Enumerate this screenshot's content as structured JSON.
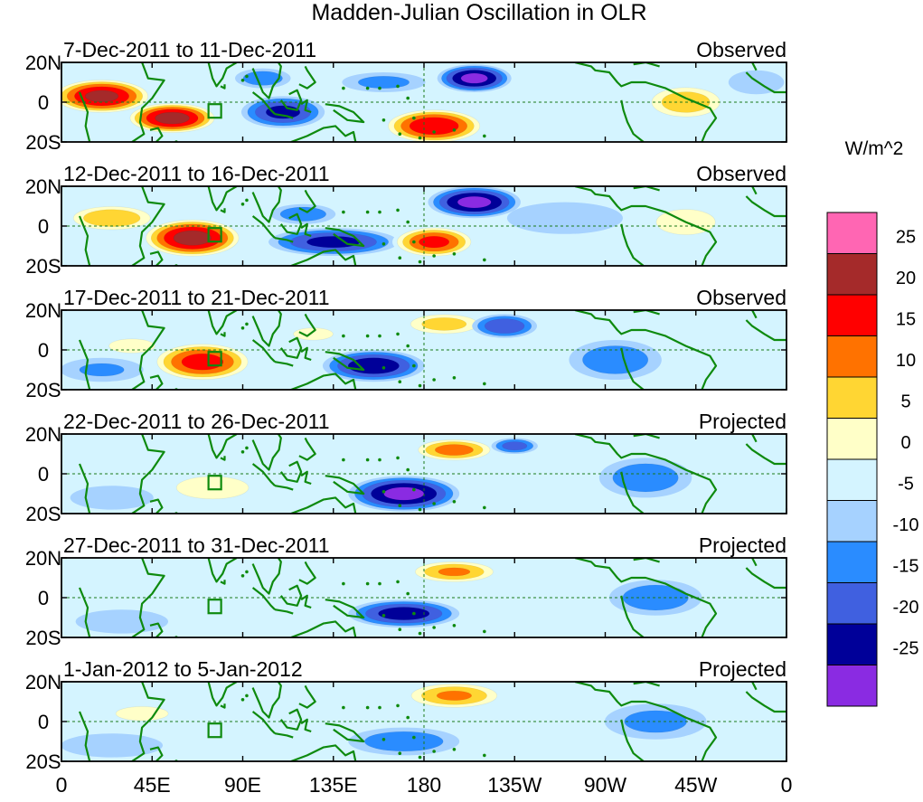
{
  "chart_data": {
    "type": "heatmap",
    "title": "Madden-Julian Oscillation in OLR",
    "colorbar": {
      "unit_label": "W/m^2",
      "tick_labels": [
        "25",
        "20",
        "15",
        "10",
        "5",
        "0",
        "-5",
        "-10",
        "-15",
        "-20",
        "-25"
      ],
      "levels": [
        {
          "lo": 30,
          "color": "#ff66b3"
        },
        {
          "lo": 25,
          "color": "#a52a2a"
        },
        {
          "lo": 20,
          "color": "#ff0000"
        },
        {
          "lo": 15,
          "color": "#ff7200"
        },
        {
          "lo": 10,
          "color": "#ffd633"
        },
        {
          "lo": 5,
          "color": "#ffffc8"
        },
        {
          "lo": 0,
          "color": "#d4f4ff"
        },
        {
          "lo": -5,
          "color": "#a6d2ff"
        },
        {
          "lo": -10,
          "color": "#2a8cff"
        },
        {
          "lo": -15,
          "color": "#4060e0"
        },
        {
          "lo": -20,
          "color": "#000099"
        },
        {
          "lo": -25,
          "color": "#8a2be2"
        }
      ]
    },
    "x_axis": {
      "lon_range": [
        0,
        360
      ],
      "ticks": [
        {
          "lon": 0,
          "label": "0"
        },
        {
          "lon": 45,
          "label": "45E"
        },
        {
          "lon": 90,
          "label": "90E"
        },
        {
          "lon": 135,
          "label": "135E"
        },
        {
          "lon": 180,
          "label": "180"
        },
        {
          "lon": 225,
          "label": "135W"
        },
        {
          "lon": 270,
          "label": "90W"
        },
        {
          "lon": 315,
          "label": "45W"
        },
        {
          "lon": 360,
          "label": "0"
        }
      ]
    },
    "y_axis": {
      "lat_range": [
        -20,
        20
      ],
      "ticks": [
        {
          "lat": 20,
          "label": "20N"
        },
        {
          "lat": 0,
          "label": "0"
        },
        {
          "lat": -20,
          "label": "20S"
        }
      ]
    },
    "panels": [
      {
        "date_range": "7-Dec-2011 to 11-Dec-2011",
        "status": "Observed",
        "anomalies": [
          {
            "lon": 20,
            "lat": 3,
            "rx": 22,
            "ry": 9,
            "value": 26
          },
          {
            "lon": 55,
            "lat": -8,
            "rx": 20,
            "ry": 8,
            "value": 27
          },
          {
            "lon": 110,
            "lat": -5,
            "rx": 18,
            "ry": 8,
            "value": -16
          },
          {
            "lon": 100,
            "lat": 12,
            "rx": 12,
            "ry": 5,
            "value": -8
          },
          {
            "lon": 185,
            "lat": -12,
            "rx": 22,
            "ry": 9,
            "value": 24
          },
          {
            "lon": 205,
            "lat": 12,
            "rx": 16,
            "ry": 7,
            "value": -21
          },
          {
            "lon": 160,
            "lat": 10,
            "rx": 18,
            "ry": 5,
            "value": -6
          },
          {
            "lon": 310,
            "lat": 0,
            "rx": 18,
            "ry": 9,
            "value": 13
          },
          {
            "lon": 250,
            "lat": 0,
            "rx": 25,
            "ry": 8,
            "value": 4
          },
          {
            "lon": 345,
            "lat": 10,
            "rx": 12,
            "ry": 6,
            "value": -4
          }
        ]
      },
      {
        "date_range": "12-Dec-2011 to 16-Dec-2011",
        "status": "Observed",
        "anomalies": [
          {
            "lon": 25,
            "lat": 4,
            "rx": 20,
            "ry": 7,
            "value": 14
          },
          {
            "lon": 65,
            "lat": -6,
            "rx": 22,
            "ry": 10,
            "value": 27
          },
          {
            "lon": 135,
            "lat": -8,
            "rx": 28,
            "ry": 7,
            "value": -16
          },
          {
            "lon": 120,
            "lat": 6,
            "rx": 14,
            "ry": 5,
            "value": -8
          },
          {
            "lon": 185,
            "lat": -8,
            "rx": 18,
            "ry": 8,
            "value": 21
          },
          {
            "lon": 205,
            "lat": 12,
            "rx": 20,
            "ry": 8,
            "value": -21
          },
          {
            "lon": 310,
            "lat": 2,
            "rx": 18,
            "ry": 9,
            "value": 8
          },
          {
            "lon": 250,
            "lat": 4,
            "rx": 25,
            "ry": 8,
            "value": -4
          }
        ]
      },
      {
        "date_range": "17-Dec-2011 to 21-Dec-2011",
        "status": "Observed",
        "anomalies": [
          {
            "lon": 70,
            "lat": -6,
            "rx": 22,
            "ry": 10,
            "value": 22
          },
          {
            "lon": 35,
            "lat": 2,
            "rx": 14,
            "ry": 5,
            "value": 8
          },
          {
            "lon": 155,
            "lat": -8,
            "rx": 22,
            "ry": 8,
            "value": -18
          },
          {
            "lon": 125,
            "lat": 8,
            "rx": 14,
            "ry": 5,
            "value": 6
          },
          {
            "lon": 190,
            "lat": 13,
            "rx": 18,
            "ry": 6,
            "value": 12
          },
          {
            "lon": 220,
            "lat": 12,
            "rx": 14,
            "ry": 6,
            "value": -14
          },
          {
            "lon": 275,
            "lat": -5,
            "rx": 20,
            "ry": 10,
            "value": -8
          },
          {
            "lon": 320,
            "lat": 2,
            "rx": 20,
            "ry": 6,
            "value": 4
          },
          {
            "lon": 20,
            "lat": -10,
            "rx": 18,
            "ry": 6,
            "value": -5
          }
        ]
      },
      {
        "date_range": "22-Dec-2011 to 26-Dec-2011",
        "status": "Projected",
        "anomalies": [
          {
            "lon": 75,
            "lat": -7,
            "rx": 22,
            "ry": 8,
            "value": 8
          },
          {
            "lon": 170,
            "lat": -10,
            "rx": 24,
            "ry": 9,
            "value": -21
          },
          {
            "lon": 195,
            "lat": 12,
            "rx": 18,
            "ry": 6,
            "value": 17
          },
          {
            "lon": 225,
            "lat": 14,
            "rx": 10,
            "ry": 4,
            "value": -12
          },
          {
            "lon": 290,
            "lat": -2,
            "rx": 20,
            "ry": 10,
            "value": -8
          },
          {
            "lon": 40,
            "lat": 3,
            "rx": 18,
            "ry": 6,
            "value": 4
          },
          {
            "lon": 25,
            "lat": -12,
            "rx": 18,
            "ry": 6,
            "value": -4
          }
        ]
      },
      {
        "date_range": "27-Dec-2011 to 31-Dec-2011",
        "status": "Projected",
        "anomalies": [
          {
            "lon": 195,
            "lat": 13,
            "rx": 20,
            "ry": 6,
            "value": 15
          },
          {
            "lon": 170,
            "lat": -8,
            "rx": 24,
            "ry": 7,
            "value": -17
          },
          {
            "lon": 75,
            "lat": -5,
            "rx": 22,
            "ry": 7,
            "value": 4
          },
          {
            "lon": 295,
            "lat": 0,
            "rx": 20,
            "ry": 9,
            "value": -8
          },
          {
            "lon": 40,
            "lat": 3,
            "rx": 18,
            "ry": 6,
            "value": 4
          },
          {
            "lon": 30,
            "lat": -12,
            "rx": 20,
            "ry": 6,
            "value": -4
          }
        ]
      },
      {
        "date_range": "1-Jan-2012 to 5-Jan-2012",
        "status": "Projected",
        "anomalies": [
          {
            "lon": 195,
            "lat": 13,
            "rx": 22,
            "ry": 7,
            "value": 15
          },
          {
            "lon": 170,
            "lat": -10,
            "rx": 24,
            "ry": 7,
            "value": -8
          },
          {
            "lon": 40,
            "lat": 4,
            "rx": 16,
            "ry": 5,
            "value": 8
          },
          {
            "lon": 90,
            "lat": -5,
            "rx": 24,
            "ry": 8,
            "value": 4
          },
          {
            "lon": 295,
            "lat": 0,
            "rx": 22,
            "ry": 9,
            "value": -6
          },
          {
            "lon": 25,
            "lat": -12,
            "rx": 22,
            "ry": 6,
            "value": -4
          }
        ]
      }
    ]
  }
}
